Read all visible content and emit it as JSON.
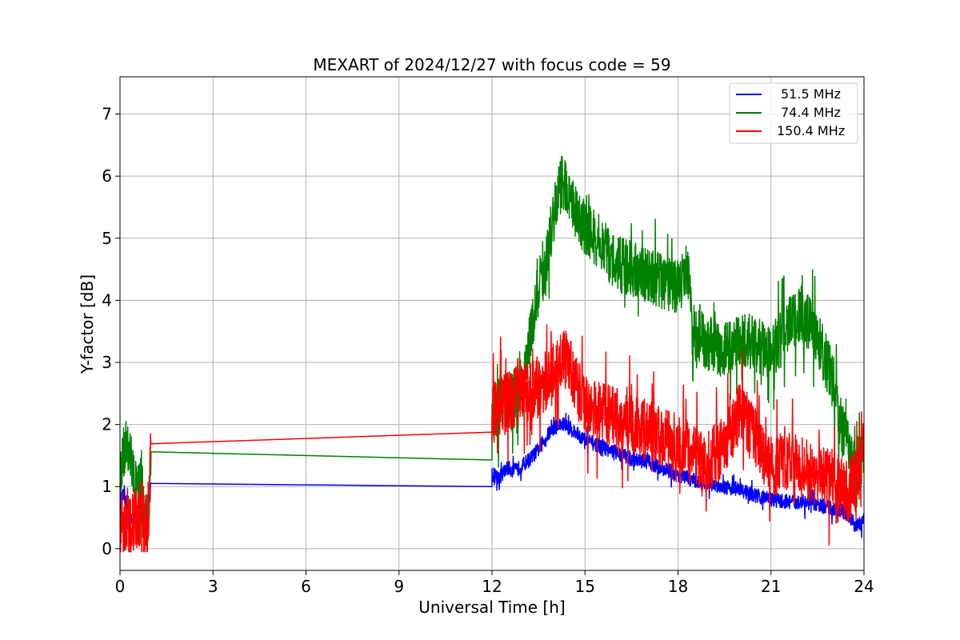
{
  "chart_data": {
    "type": "line",
    "title": "MEXART of 2024/12/27 with focus code = 59",
    "xlabel": "Universal Time [h]",
    "ylabel": "Y-factor [dB]",
    "xlim": [
      0,
      24
    ],
    "ylim": [
      -0.35,
      7.6
    ],
    "xticks": [
      0,
      3,
      6,
      9,
      12,
      15,
      18,
      21,
      24
    ],
    "xtick_labels": [
      "0",
      "3",
      "6",
      "9",
      "12",
      "15",
      "18",
      "21",
      "24"
    ],
    "yticks": [
      0,
      1,
      2,
      3,
      4,
      5,
      6,
      7
    ],
    "ytick_labels": [
      "0",
      "1",
      "2",
      "3",
      "4",
      "5",
      "6",
      "7"
    ],
    "grid": true,
    "legend_position": "top-right",
    "series": [
      {
        "name": "51.5 MHz",
        "color": "#0000ff",
        "x": [
          0,
          0.1,
          0.2,
          0.3,
          0.4,
          0.5,
          0.6,
          0.7,
          0.8,
          0.9,
          1.0,
          12.0,
          12.0,
          12.25,
          12.5,
          12.75,
          13.0,
          13.25,
          13.5,
          13.75,
          14.0,
          14.25,
          14.5,
          14.75,
          15.0,
          15.5,
          16.0,
          16.5,
          17.0,
          17.5,
          18.0,
          18.5,
          19.0,
          19.5,
          20.0,
          20.5,
          21.0,
          21.5,
          22.0,
          22.5,
          23.0,
          23.5,
          23.75,
          24.0
        ],
        "y": [
          0.75,
          0.85,
          0.7,
          0.55,
          0.45,
          0.5,
          0.45,
          0.55,
          0.6,
          0.5,
          1.05,
          1.08,
          1.2,
          1.15,
          1.3,
          1.25,
          1.35,
          1.45,
          1.6,
          1.8,
          1.95,
          2.0,
          1.95,
          1.85,
          1.75,
          1.65,
          1.55,
          1.45,
          1.4,
          1.3,
          1.2,
          1.1,
          1.05,
          1.0,
          0.95,
          0.85,
          0.8,
          0.75,
          0.75,
          0.7,
          0.65,
          0.55,
          0.35,
          0.45
        ]
      },
      {
        "name": "74.4 MHz",
        "color": "#008000",
        "x": [
          0,
          0.1,
          0.2,
          0.3,
          0.4,
          0.5,
          0.6,
          0.7,
          0.8,
          0.9,
          1.0,
          12.0,
          12.0,
          12.5,
          13.0,
          13.25,
          13.5,
          13.75,
          14.0,
          14.25,
          14.5,
          14.75,
          15.0,
          15.5,
          16.0,
          16.5,
          17.0,
          17.5,
          18.0,
          18.3,
          18.5,
          19.0,
          19.5,
          20.0,
          20.5,
          21.0,
          21.5,
          22.0,
          22.5,
          23.0,
          23.25,
          23.5,
          23.75,
          24.0
        ],
        "y": [
          1.3,
          1.5,
          1.8,
          1.6,
          1.2,
          1.0,
          0.9,
          1.0,
          0.6,
          0.4,
          1.56,
          1.63,
          2.2,
          2.4,
          2.5,
          3.5,
          4.2,
          4.6,
          5.4,
          5.9,
          5.7,
          5.3,
          5.2,
          4.9,
          4.6,
          4.5,
          4.4,
          4.3,
          4.2,
          4.5,
          3.5,
          3.3,
          3.2,
          3.4,
          3.3,
          3.1,
          3.6,
          3.8,
          3.4,
          2.7,
          2.0,
          1.6,
          1.2,
          1.5
        ]
      },
      {
        "name": "150.4 MHz",
        "color": "#ff0000",
        "x": [
          0,
          0.1,
          0.2,
          0.3,
          0.4,
          0.5,
          0.6,
          0.7,
          0.8,
          0.9,
          1.0,
          12.0,
          12.0,
          12.5,
          13.0,
          13.5,
          14.0,
          14.25,
          14.5,
          14.75,
          15.0,
          15.5,
          16.0,
          16.5,
          17.0,
          17.5,
          18.0,
          18.5,
          19.0,
          19.5,
          20.0,
          20.5,
          21.0,
          21.5,
          22.0,
          22.5,
          23.0,
          23.5,
          24.0
        ],
        "y": [
          0.35,
          0.3,
          0.45,
          0.3,
          0.4,
          0.5,
          0.35,
          0.6,
          0.4,
          0.3,
          1.69,
          1.75,
          2.2,
          2.4,
          2.5,
          2.6,
          2.9,
          3.1,
          3.0,
          2.6,
          2.3,
          2.2,
          2.1,
          2.0,
          1.9,
          1.8,
          1.7,
          1.5,
          1.4,
          1.7,
          2.2,
          1.8,
          1.3,
          1.4,
          1.3,
          1.2,
          1.1,
          0.9,
          1.6
        ]
      }
    ]
  }
}
